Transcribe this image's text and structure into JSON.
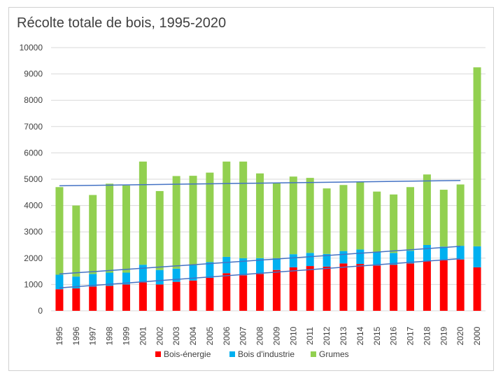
{
  "chart_data": {
    "type": "bar",
    "stacked": true,
    "title": "Récolte totale de bois, 1995-2020",
    "xlabel": "",
    "ylabel": "",
    "ylim": [
      0,
      10000
    ],
    "yticks": [
      "0",
      "1000",
      "2000",
      "3000",
      "4000",
      "5000",
      "6000",
      "7000",
      "8000",
      "9000",
      "10000"
    ],
    "grid": true,
    "legend_position": "bottom",
    "categories": [
      "1995",
      "1996",
      "1997",
      "1998",
      "1999",
      "2001",
      "2002",
      "2003",
      "2004",
      "2005",
      "2006",
      "2007",
      "2008",
      "2009",
      "2010",
      "2011",
      "2012",
      "2013",
      "2014",
      "2015",
      "2016",
      "2017",
      "2018",
      "2019",
      "2020",
      "2000"
    ],
    "series": [
      {
        "name": "Bois-énergie",
        "color": "#ff0000",
        "values": [
          820,
          850,
          920,
          950,
          1000,
          1080,
          1000,
          1100,
          1150,
          1250,
          1430,
          1350,
          1400,
          1550,
          1650,
          1700,
          1680,
          1800,
          1780,
          1720,
          1750,
          1800,
          1880,
          1920,
          1950,
          1650
        ]
      },
      {
        "name": "Bois d'industrie",
        "color": "#00b0f0",
        "values": [
          550,
          450,
          480,
          500,
          450,
          670,
          550,
          500,
          580,
          600,
          620,
          650,
          600,
          450,
          500,
          500,
          480,
          470,
          550,
          500,
          450,
          480,
          620,
          520,
          520,
          800
        ]
      },
      {
        "name": "Grumes",
        "color": "#92d050",
        "values": [
          3330,
          2700,
          3000,
          3380,
          3310,
          3920,
          3000,
          3520,
          3400,
          3400,
          3620,
          3670,
          3220,
          2850,
          2950,
          2850,
          2490,
          2510,
          2570,
          2310,
          2220,
          2420,
          2680,
          2160,
          2330,
          6800
        ]
      }
    ],
    "trendlines": [
      {
        "color": "#4472c4",
        "from": [
          0,
          4750
        ],
        "to": [
          24,
          4950
        ]
      },
      {
        "color": "#4472c4",
        "from": [
          0,
          1400
        ],
        "to": [
          24,
          2450
        ]
      },
      {
        "color": "#4472c4",
        "from": [
          0,
          870
        ],
        "to": [
          24,
          1980
        ]
      }
    ]
  }
}
